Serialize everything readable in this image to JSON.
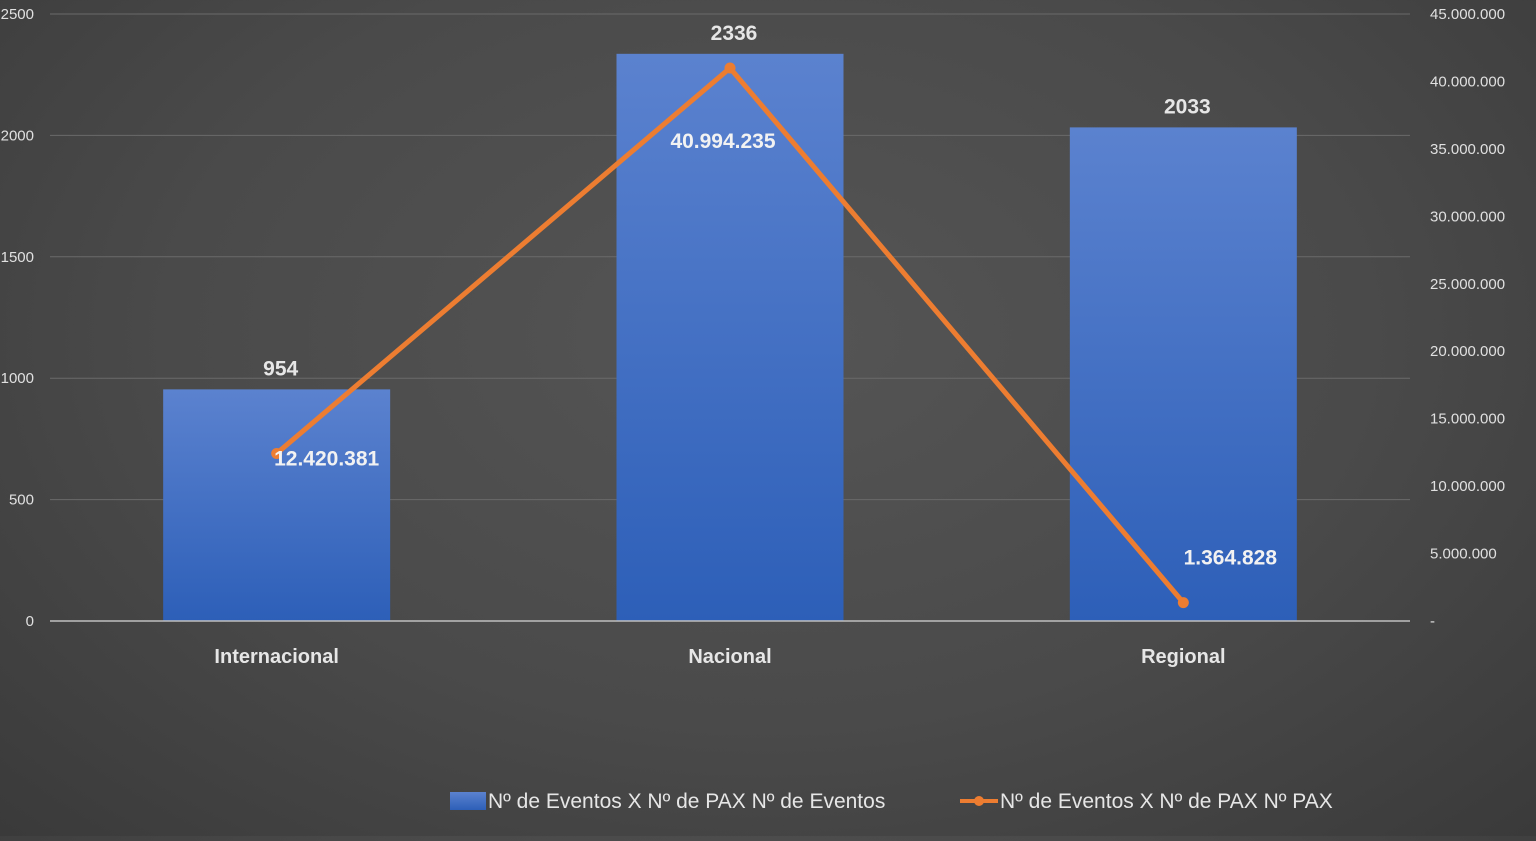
{
  "chart_data": {
    "type": "bar",
    "categories": [
      "Internacional",
      "Nacional",
      "Regional"
    ],
    "series": [
      {
        "name": "Nº de Eventos X Nº de PAX Nº de Eventos",
        "type": "bar",
        "axis": "left",
        "values": [
          954,
          2336,
          2033
        ],
        "labels": [
          "954",
          "2336",
          "2033"
        ],
        "color": "#4472C4"
      },
      {
        "name": "Nº de Eventos X Nº de PAX Nº PAX",
        "type": "line",
        "axis": "right",
        "values": [
          12420381,
          40994235,
          1364828
        ],
        "labels": [
          "12.420.381",
          "40.994.235",
          "1.364.828"
        ],
        "color": "#ED7D31"
      }
    ],
    "y_left": {
      "ylim": [
        0,
        2500
      ],
      "ticks": [
        0,
        500,
        1000,
        1500,
        2000,
        2500
      ],
      "tick_labels": [
        "0",
        "500",
        "1000",
        "1500",
        "2000",
        "2500"
      ]
    },
    "y_right": {
      "ylim": [
        0,
        45000000
      ],
      "ticks": [
        0,
        5000000,
        10000000,
        15000000,
        20000000,
        25000000,
        30000000,
        35000000,
        40000000,
        45000000
      ],
      "tick_labels": [
        "-",
        "5.000.000",
        "10.000.000",
        "15.000.000",
        "20.000.000",
        "25.000.000",
        "30.000.000",
        "35.000.000",
        "40.000.000",
        "45.000.000"
      ]
    },
    "grid": true,
    "legend_position": "bottom",
    "title": "",
    "xlabel": "",
    "ylabel": ""
  }
}
